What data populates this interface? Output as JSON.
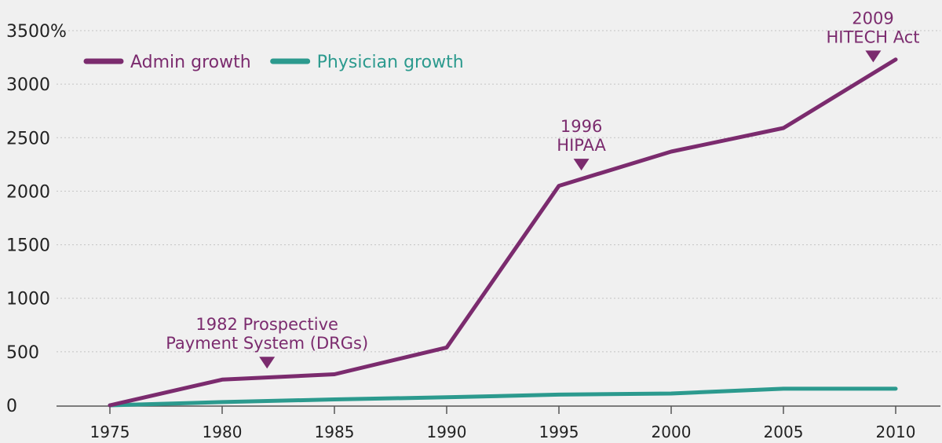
{
  "chart_data": {
    "type": "line",
    "title": "",
    "xlabel": "",
    "ylabel": "",
    "x": [
      1975,
      1980,
      1985,
      1990,
      1995,
      2000,
      2005,
      2010
    ],
    "xlim": [
      1975,
      2010
    ],
    "ylim": [
      0,
      3500
    ],
    "grid": "horizontal-dotted",
    "legend_position": "top-left",
    "y_ticks": [
      "0",
      "500",
      "1000",
      "1500",
      "2000",
      "2500",
      "3000",
      "3500%"
    ],
    "x_ticks": [
      "1975",
      "1980",
      "1985",
      "1990",
      "1995",
      "2000",
      "2005",
      "2010"
    ],
    "series": [
      {
        "name": "Admin growth",
        "color": "#7b2b6e",
        "points": [
          [
            1975,
            0
          ],
          [
            1980,
            240
          ],
          [
            1985,
            290
          ],
          [
            1990,
            540
          ],
          [
            1995,
            2050
          ],
          [
            2000,
            2370
          ],
          [
            2005,
            2590
          ],
          [
            2010,
            3230
          ]
        ]
      },
      {
        "name": "Physician growth",
        "color": "#2c9a8e",
        "points": [
          [
            1975,
            0
          ],
          [
            1980,
            30
          ],
          [
            1985,
            55
          ],
          [
            1990,
            75
          ],
          [
            1995,
            100
          ],
          [
            2000,
            110
          ],
          [
            2005,
            155
          ],
          [
            2010,
            155
          ]
        ]
      }
    ],
    "annotations": [
      {
        "lines": [
          "1982 Prospective",
          "Payment System (DRGs)"
        ],
        "x": 1982,
        "y": 270
      },
      {
        "lines": [
          "1996",
          "HIPAA"
        ],
        "x": 1996,
        "y": 2120
      },
      {
        "lines": [
          "2009",
          "HITECH Act"
        ],
        "x": 2009,
        "y": 3130
      }
    ]
  }
}
